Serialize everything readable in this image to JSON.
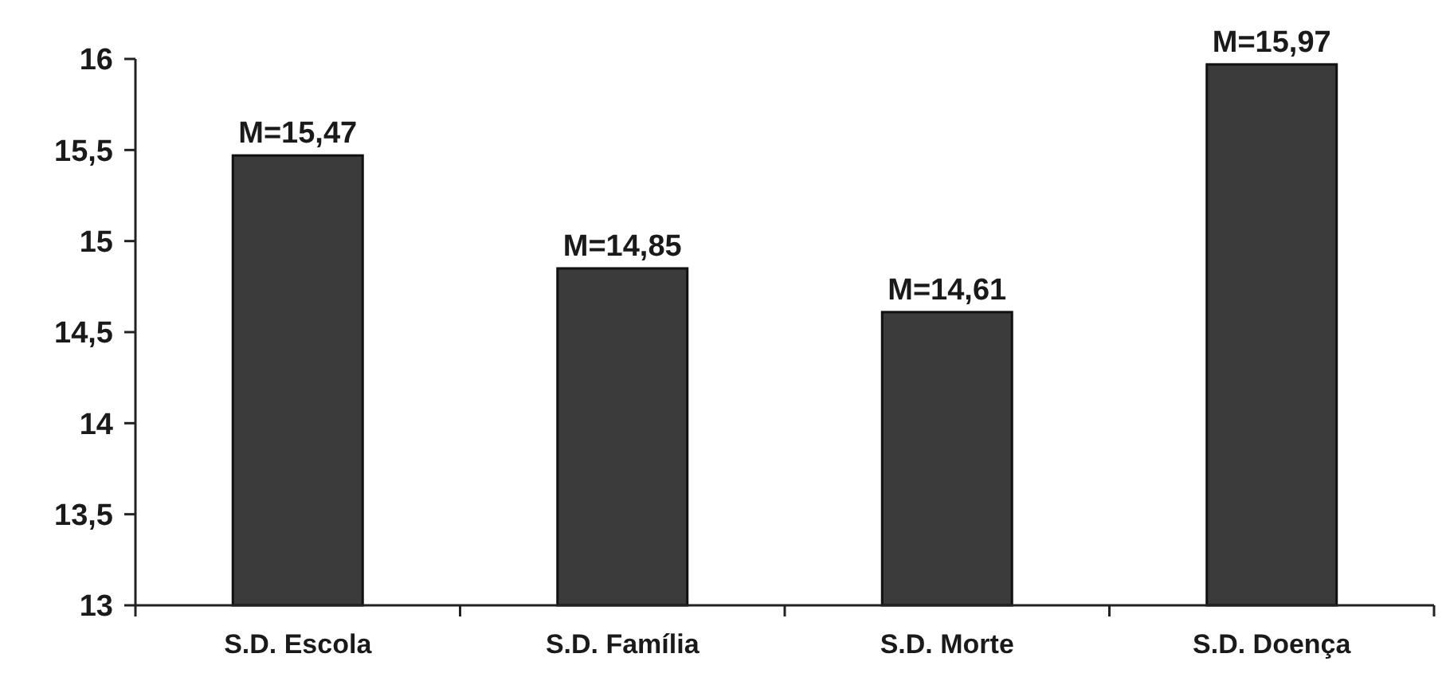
{
  "chart_data": {
    "type": "bar",
    "categories": [
      "S.D. Escola",
      "S.D. Família",
      "S.D. Morte",
      "S.D. Doença"
    ],
    "values": [
      15.47,
      14.85,
      14.61,
      15.97
    ],
    "color": "#3b3b3b",
    "value_labels": [
      "M=15,47",
      "M=14,85",
      "M=14,61",
      "M=15,97"
    ],
    "ylim": [
      13,
      16
    ],
    "yticks": [
      13,
      {
        "value": 13.5,
        "label": "13,5"
      },
      14,
      {
        "value": 14.5,
        "label": "14,5"
      },
      15,
      {
        "value": 15.5,
        "label": "15,5"
      },
      16
    ],
    "grid": false
  }
}
